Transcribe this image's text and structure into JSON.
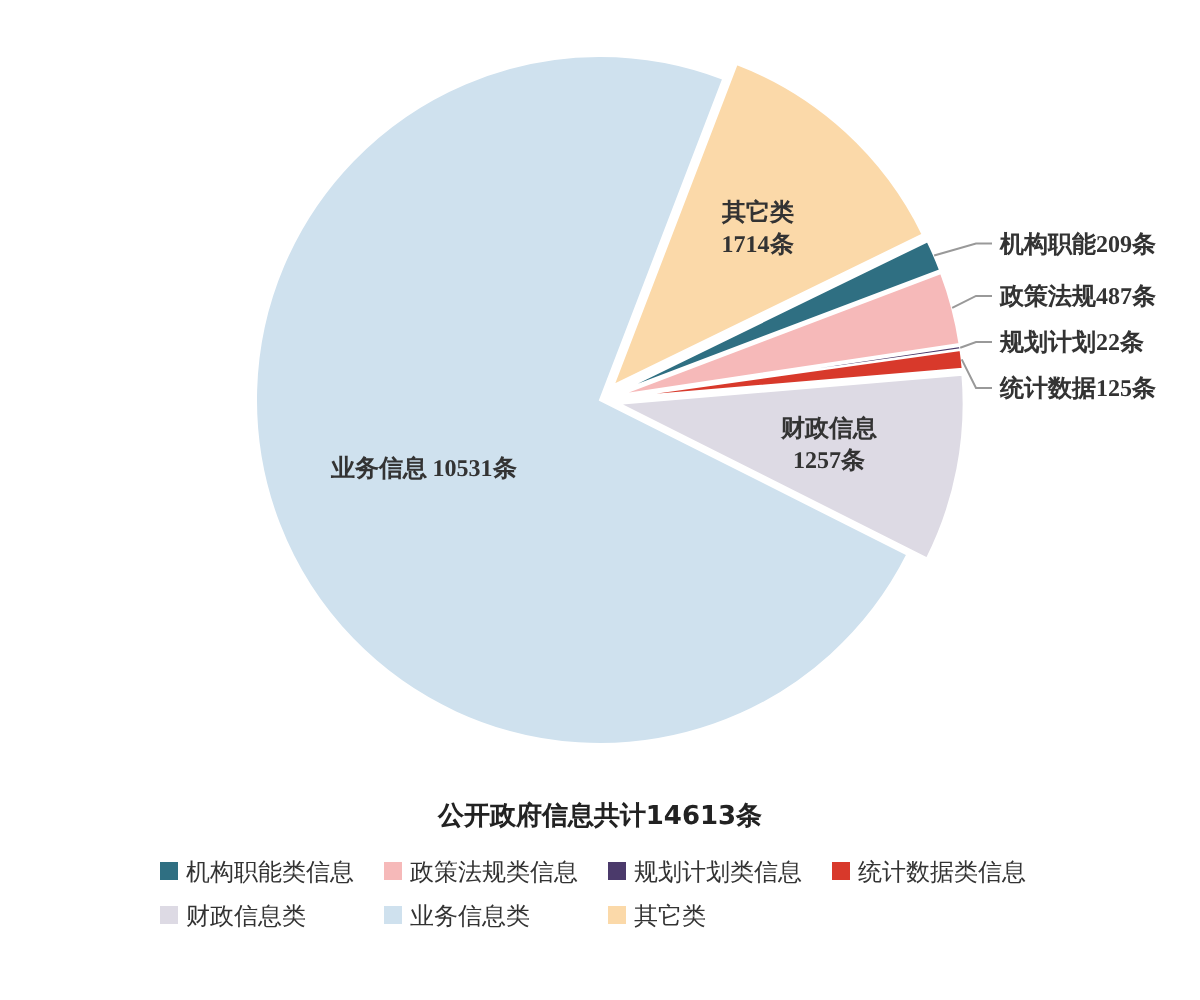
{
  "chart_data": {
    "type": "pie",
    "title": "公开政府信息共计14613条",
    "categories": [
      "机构职能类信息",
      "政策法规类信息",
      "规划计划类信息",
      "统计数据类信息",
      "财政信息类",
      "业务信息类",
      "其它类"
    ],
    "values": [
      209,
      487,
      22,
      125,
      1257,
      10531,
      1714
    ],
    "colors": [
      "#2f6f82",
      "#f6b9b9",
      "#4b3a6b",
      "#d8392b",
      "#dddae4",
      "#cfe1ee",
      "#fbd9a9"
    ],
    "value_labels": [
      "机构职能209条",
      "政策法规487条",
      "规划计划22条",
      "统计数据125条",
      "财政信息\n1257条",
      "业务信息 10531条",
      "其它类\n1714条"
    ],
    "legend": "bottom"
  }
}
